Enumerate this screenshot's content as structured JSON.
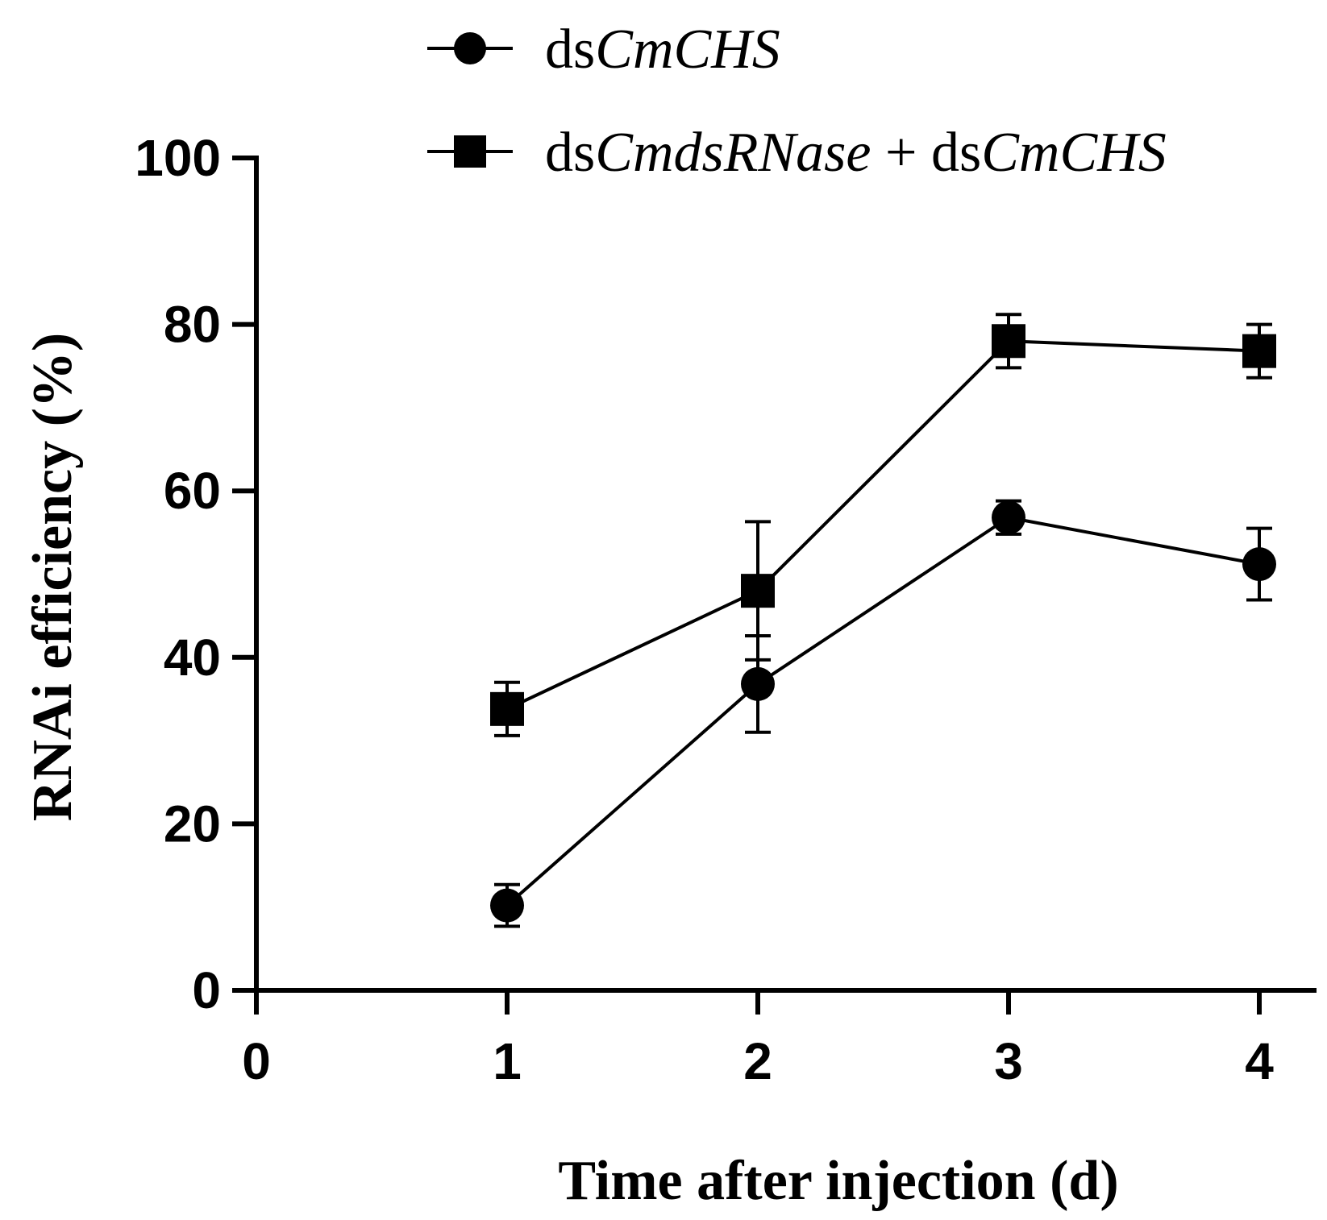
{
  "chart_data": {
    "type": "line",
    "xlabel": "Time after injection (d)",
    "ylabel": "RNAi efficiency (%)",
    "xlim": [
      0,
      4
    ],
    "ylim": [
      0,
      100
    ],
    "x_ticks": [
      "0",
      "1",
      "2",
      "3",
      "4"
    ],
    "y_ticks": [
      "0",
      "20",
      "40",
      "60",
      "80",
      "100"
    ],
    "grid": false,
    "legend_position": "top-right",
    "series": [
      {
        "name": "dsCmCHS",
        "name_parts": [
          {
            "text": "ds",
            "italic": false
          },
          {
            "text": "CmCHS",
            "italic": true
          }
        ],
        "marker": "circle",
        "x": [
          1,
          2,
          3,
          4
        ],
        "y": [
          10.2,
          36.8,
          56.8,
          51.2
        ],
        "error": [
          2.5,
          5.8,
          2.0,
          4.3
        ]
      },
      {
        "name": "dsCmdsRNase + dsCmCHS",
        "name_parts": [
          {
            "text": "ds",
            "italic": false
          },
          {
            "text": "CmdsRNase",
            "italic": true
          },
          {
            "text": " + ds",
            "italic": false
          },
          {
            "text": "CmCHS",
            "italic": true
          }
        ],
        "marker": "square",
        "x": [
          1,
          2,
          3,
          4
        ],
        "y": [
          33.8,
          48.0,
          78.0,
          76.8
        ],
        "error": [
          3.2,
          8.3,
          3.2,
          3.2
        ]
      }
    ]
  }
}
